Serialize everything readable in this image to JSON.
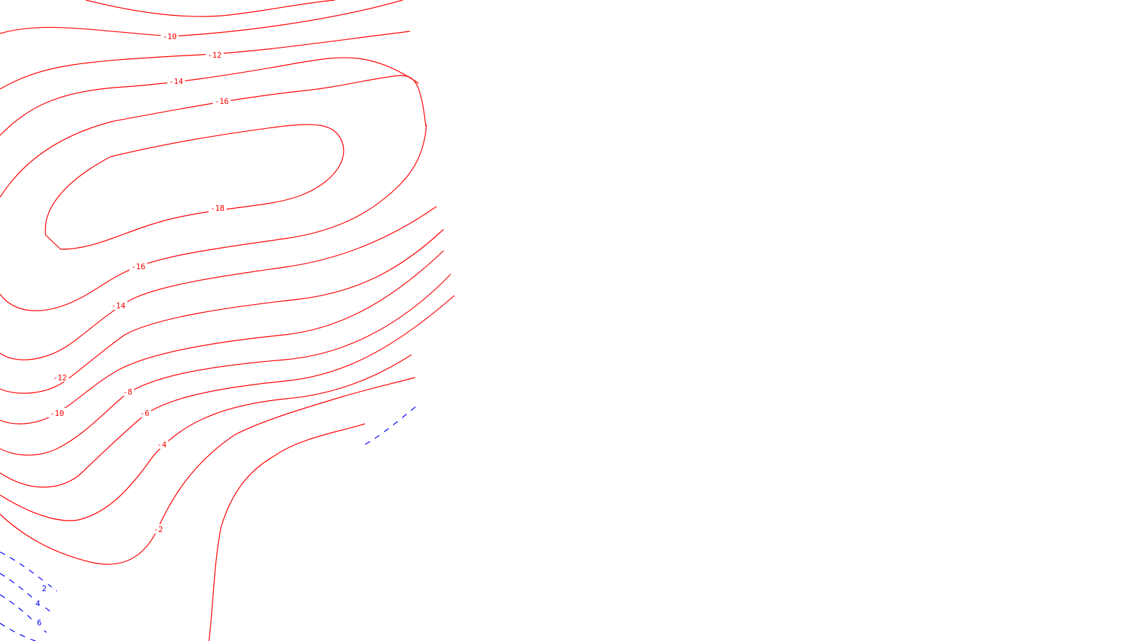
{
  "chart_data": {
    "type": "contour",
    "title": "",
    "xlabel": "",
    "ylabel": "",
    "grid": false,
    "legend": "none",
    "negative_style": {
      "color": "#ff0000",
      "line": "solid"
    },
    "positive_style": {
      "color": "#0000ff",
      "line": "dashed"
    },
    "contours": [
      {
        "level": -10,
        "label": "-10"
      },
      {
        "level": -12,
        "label": "-12"
      },
      {
        "level": -14,
        "label": "-14"
      },
      {
        "level": -16,
        "label": "-16"
      },
      {
        "level": -18,
        "label": "-18"
      },
      {
        "level": -16,
        "label": "-16"
      },
      {
        "level": -14,
        "label": "-14"
      },
      {
        "level": -12,
        "label": "-12"
      },
      {
        "level": -10,
        "label": "-10"
      },
      {
        "level": -8,
        "label": "-8"
      },
      {
        "level": -6,
        "label": "-6"
      },
      {
        "level": -4,
        "label": "-4"
      },
      {
        "level": -2,
        "label": "-2"
      },
      {
        "level": 0,
        "label": ""
      },
      {
        "level": 2,
        "label": "2"
      },
      {
        "level": 4,
        "label": "4"
      },
      {
        "level": 6,
        "label": "6"
      }
    ]
  }
}
